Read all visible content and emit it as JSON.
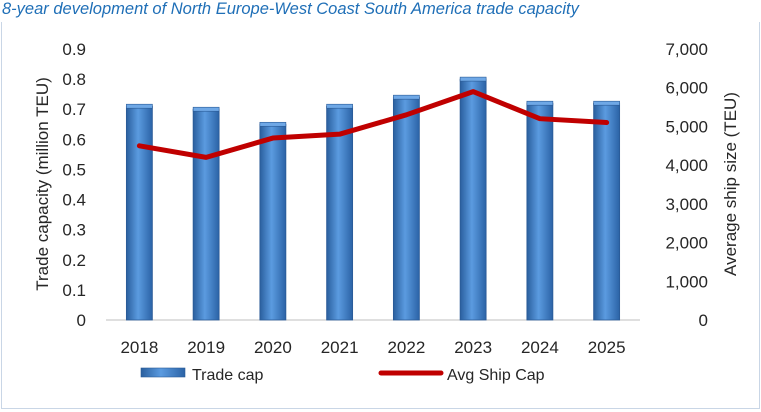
{
  "title": "8-year development of North Europe-West Coast South America trade capacity",
  "chart_data": {
    "type": "bar",
    "categories": [
      "2018",
      "2019",
      "2020",
      "2021",
      "2022",
      "2023",
      "2024",
      "2025"
    ],
    "series": [
      {
        "name": "Trade cap",
        "type": "bar",
        "axis": "left",
        "values": [
          0.71,
          0.7,
          0.65,
          0.71,
          0.74,
          0.8,
          0.72,
          0.72
        ]
      },
      {
        "name": "Avg Ship Cap",
        "type": "line",
        "axis": "right",
        "values": [
          4500,
          4200,
          4700,
          4800,
          5300,
          5900,
          5200,
          5100
        ]
      }
    ],
    "ylabel": "Trade capacity (million TEU)",
    "y2label": "Average ship size (TEU)",
    "ylim": [
      0,
      0.9
    ],
    "y2lim": [
      0,
      7000
    ],
    "yticks": [
      "0",
      "0.1",
      "0.2",
      "0.3",
      "0.4",
      "0.5",
      "0.6",
      "0.7",
      "0.8",
      "0.9"
    ],
    "y2ticks": [
      "0",
      "1,000",
      "2,000",
      "3,000",
      "4,000",
      "5,000",
      "6,000",
      "7,000"
    ],
    "grid": false,
    "legend": "bottom",
    "colors": {
      "bar": "#3b78c4",
      "bar_edge": "#2a5a96",
      "line": "#c00000"
    }
  }
}
